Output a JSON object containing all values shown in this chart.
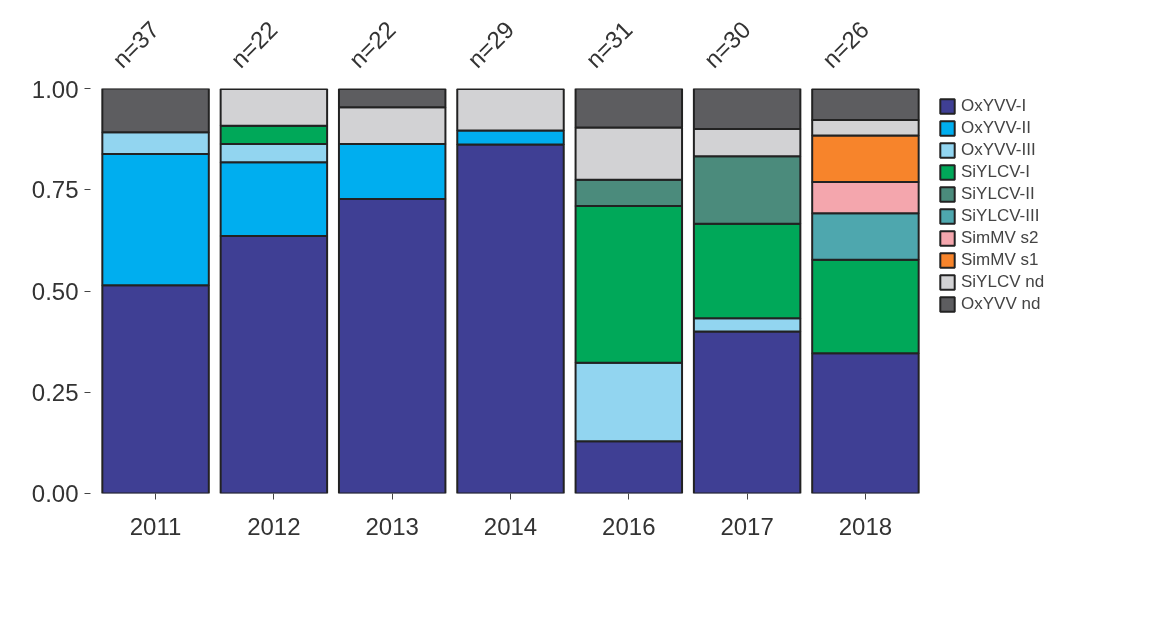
{
  "chart_data": {
    "type": "bar",
    "stacked": true,
    "categories": [
      "2011",
      "2012",
      "2013",
      "2014",
      "2016",
      "2017",
      "2018"
    ],
    "series": [
      {
        "name": "OxYVV-I",
        "color": "#3f3f94",
        "values": [
          0.514,
          0.636,
          0.727,
          0.862,
          0.129,
          0.4,
          0.346
        ]
      },
      {
        "name": "OxYVV-II",
        "color": "#00aeef",
        "values": [
          0.324,
          0.182,
          0.136,
          0.034,
          null,
          null,
          null
        ]
      },
      {
        "name": "OxYVV-III",
        "color": "#92d5f0",
        "values": [
          0.054,
          0.045,
          null,
          null,
          0.194,
          0.033,
          null
        ]
      },
      {
        "name": "SiYLCV-I",
        "color": "#00a859",
        "values": [
          null,
          0.045,
          null,
          null,
          0.387,
          0.233,
          0.231
        ]
      },
      {
        "name": "SiYLCV-II",
        "color": "#4b8b7c",
        "values": [
          null,
          null,
          null,
          null,
          0.065,
          0.167,
          null
        ]
      },
      {
        "name": "SiYLCV-III",
        "color": "#4ea7ae",
        "values": [
          null,
          null,
          null,
          null,
          null,
          null,
          0.115
        ]
      },
      {
        "name": "SimMV s2",
        "color": "#f4a6ad",
        "values": [
          null,
          null,
          null,
          null,
          null,
          null,
          0.077
        ]
      },
      {
        "name": "SimMV s1",
        "color": "#f7842b",
        "values": [
          null,
          null,
          null,
          null,
          null,
          null,
          0.115
        ]
      },
      {
        "name": "SiYLCV nd",
        "color": "#d2d2d4",
        "values": [
          null,
          0.091,
          0.091,
          0.103,
          0.129,
          0.067,
          0.038
        ]
      },
      {
        "name": "OxYVV nd",
        "color": "#5d5d60",
        "values": [
          0.108,
          null,
          0.045,
          null,
          0.097,
          0.1,
          0.077
        ]
      }
    ],
    "ylim": [
      0,
      1
    ],
    "yticks": [
      {
        "value": 0,
        "label": "0.00"
      },
      {
        "value": 0.25,
        "label": "0.25"
      },
      {
        "value": 0.5,
        "label": "0.50"
      },
      {
        "value": 0.75,
        "label": "0.75"
      },
      {
        "value": 1,
        "label": "1.00"
      }
    ],
    "legend": "right",
    "grid": false,
    "annotations": [
      "n=37",
      "n=22",
      "n=22",
      "n=29",
      "n=31",
      "n=30",
      "n=26"
    ]
  }
}
